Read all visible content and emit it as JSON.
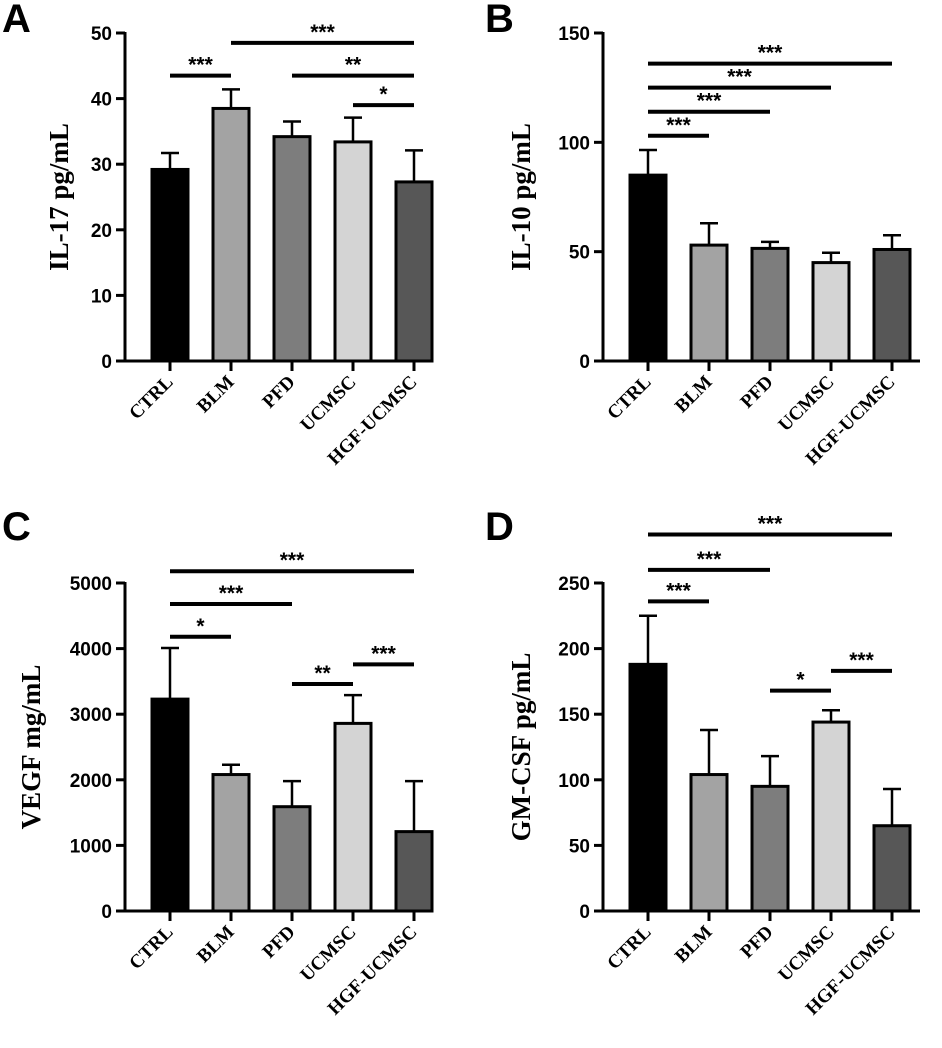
{
  "chart_data": [
    {
      "panel": "A",
      "type": "bar",
      "ylabel": "IL-17 pg/mL",
      "ylim": [
        0,
        50
      ],
      "yticks": [
        "0",
        "10",
        "20",
        "30",
        "40",
        "50"
      ],
      "categories": [
        "CTRL",
        "BLM",
        "PFD",
        "UCMSC",
        "HGF-UCMSC"
      ],
      "values": [
        29.2,
        38.5,
        34.2,
        33.4,
        27.3
      ],
      "errors": [
        2.5,
        2.9,
        2.3,
        3.7,
        4.8
      ],
      "colors": [
        "#000000",
        "#a3a3a3",
        "#7d7d7d",
        "#d4d4d4",
        "#575757"
      ],
      "significance": [
        {
          "from": 0,
          "to": 1,
          "label": "***",
          "y": 43.5
        },
        {
          "from": 1,
          "to": 4,
          "label": "***",
          "y": 48.5
        },
        {
          "from": 2,
          "to": 4,
          "label": "**",
          "y": 43.5
        },
        {
          "from": 3,
          "to": 4,
          "label": "*",
          "y": 39
        }
      ]
    },
    {
      "panel": "B",
      "type": "bar",
      "ylabel": "IL-10 pg/mL",
      "ylim": [
        0,
        150
      ],
      "yticks": [
        "0",
        "50",
        "100",
        "150"
      ],
      "categories": [
        "CTRL",
        "BLM",
        "PFD",
        "UCMSC",
        "HGF-UCMSC"
      ],
      "values": [
        85,
        53,
        51.5,
        45,
        51
      ],
      "errors": [
        11.5,
        10,
        3,
        4.5,
        6.5
      ],
      "colors": [
        "#000000",
        "#a3a3a3",
        "#7d7d7d",
        "#d4d4d4",
        "#575757"
      ],
      "significance": [
        {
          "from": 0,
          "to": 1,
          "label": "***",
          "y": 103
        },
        {
          "from": 0,
          "to": 2,
          "label": "***",
          "y": 114
        },
        {
          "from": 0,
          "to": 3,
          "label": "***",
          "y": 125
        },
        {
          "from": 0,
          "to": 4,
          "label": "***",
          "y": 136
        }
      ]
    },
    {
      "panel": "C",
      "type": "bar",
      "ylabel": "VEGF mg/mL",
      "ylim": [
        0,
        5000
      ],
      "yticks": [
        "0",
        "1000",
        "2000",
        "3000",
        "4000",
        "5000"
      ],
      "categories": [
        "CTRL",
        "BLM",
        "PFD",
        "UCMSC",
        "HGF-UCMSC"
      ],
      "values": [
        3230,
        2080,
        1590,
        2860,
        1210
      ],
      "errors": [
        780,
        150,
        390,
        430,
        770
      ],
      "colors": [
        "#000000",
        "#a3a3a3",
        "#7d7d7d",
        "#d4d4d4",
        "#575757"
      ],
      "significance": [
        {
          "from": 0,
          "to": 1,
          "label": "*",
          "y": 4180
        },
        {
          "from": 0,
          "to": 2,
          "label": "***",
          "y": 4680
        },
        {
          "from": 0,
          "to": 4,
          "label": "***",
          "y": 5180
        },
        {
          "from": 2,
          "to": 3,
          "label": "**",
          "y": 3460
        },
        {
          "from": 3,
          "to": 4,
          "label": "***",
          "y": 3760
        }
      ]
    },
    {
      "panel": "D",
      "type": "bar",
      "ylabel": "GM-CSF pg/mL",
      "ylim": [
        0,
        250
      ],
      "yticks": [
        "0",
        "50",
        "100",
        "150",
        "200",
        "250"
      ],
      "categories": [
        "CTRL",
        "BLM",
        "PFD",
        "UCMSC",
        "HGF-UCMSC"
      ],
      "values": [
        188,
        104,
        95,
        144,
        65
      ],
      "errors": [
        37,
        34,
        23,
        9,
        28
      ],
      "colors": [
        "#000000",
        "#a3a3a3",
        "#7d7d7d",
        "#d4d4d4",
        "#575757"
      ],
      "significance": [
        {
          "from": 0,
          "to": 1,
          "label": "***",
          "y": 236
        },
        {
          "from": 0,
          "to": 2,
          "label": "***",
          "y": 260
        },
        {
          "from": 0,
          "to": 4,
          "label": "***",
          "y": 287
        },
        {
          "from": 2,
          "to": 3,
          "label": "*",
          "y": 168
        },
        {
          "from": 3,
          "to": 4,
          "label": "***",
          "y": 183
        }
      ]
    }
  ]
}
